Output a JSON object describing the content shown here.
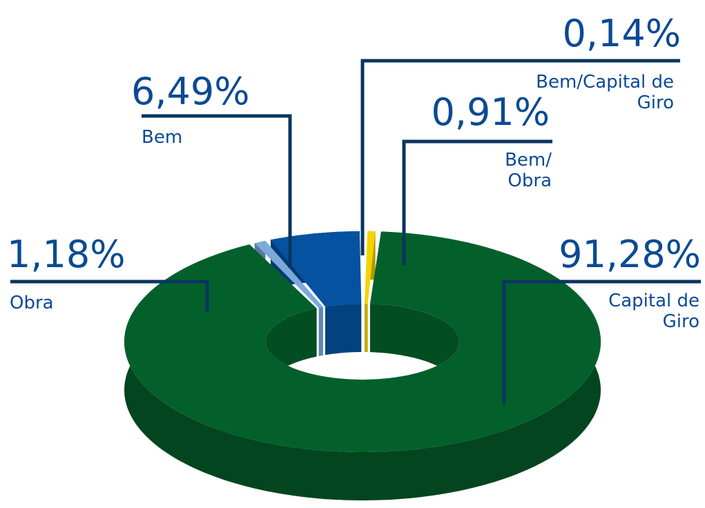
{
  "chart_data": {
    "type": "donut3d",
    "categories": [
      "Bem/Capital de Giro",
      "Bem/ Obra",
      "Capital de Giro",
      "Obra",
      "Bem"
    ],
    "values": [
      0.14,
      0.91,
      91.28,
      1.18,
      6.49
    ],
    "value_labels": [
      "0,14%",
      "0,91%",
      "91,28%",
      "1,18%",
      "6,49%"
    ],
    "colors": [
      "#f4f4f4",
      "#f3d400",
      "#04602b",
      "#7aaad9",
      "#0452a0"
    ]
  }
}
